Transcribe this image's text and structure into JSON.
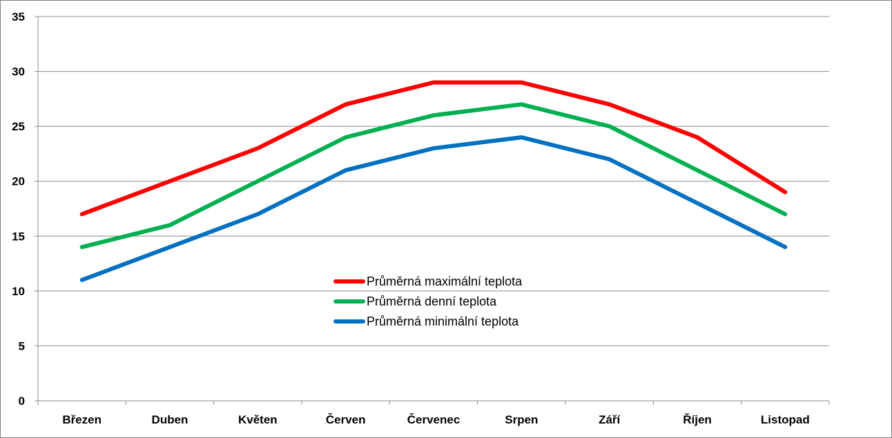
{
  "chart_data": {
    "type": "line",
    "title": "",
    "xlabel": "",
    "ylabel": "",
    "categories": [
      "Březen",
      "Duben",
      "Květen",
      "Červen",
      "Červenec",
      "Srpen",
      "Září",
      "Říjen",
      "Listopad"
    ],
    "ylim": [
      0,
      35
    ],
    "yticks": [
      0,
      5,
      10,
      15,
      20,
      25,
      30,
      35
    ],
    "grid": true,
    "legend_position": "center",
    "series": [
      {
        "name": "Průměrná maximální teplota",
        "color": "#ff0000",
        "values": [
          17,
          20,
          23,
          27,
          29,
          29,
          27,
          24,
          19
        ]
      },
      {
        "name": "Průměrná denní teplota",
        "color": "#00b050",
        "values": [
          14,
          16,
          20,
          24,
          26,
          27,
          25,
          21,
          17
        ]
      },
      {
        "name": "Průměrná minimální teplota",
        "color": "#0070c0",
        "values": [
          11,
          14,
          17,
          21,
          23,
          24,
          22,
          18,
          14
        ]
      }
    ]
  }
}
